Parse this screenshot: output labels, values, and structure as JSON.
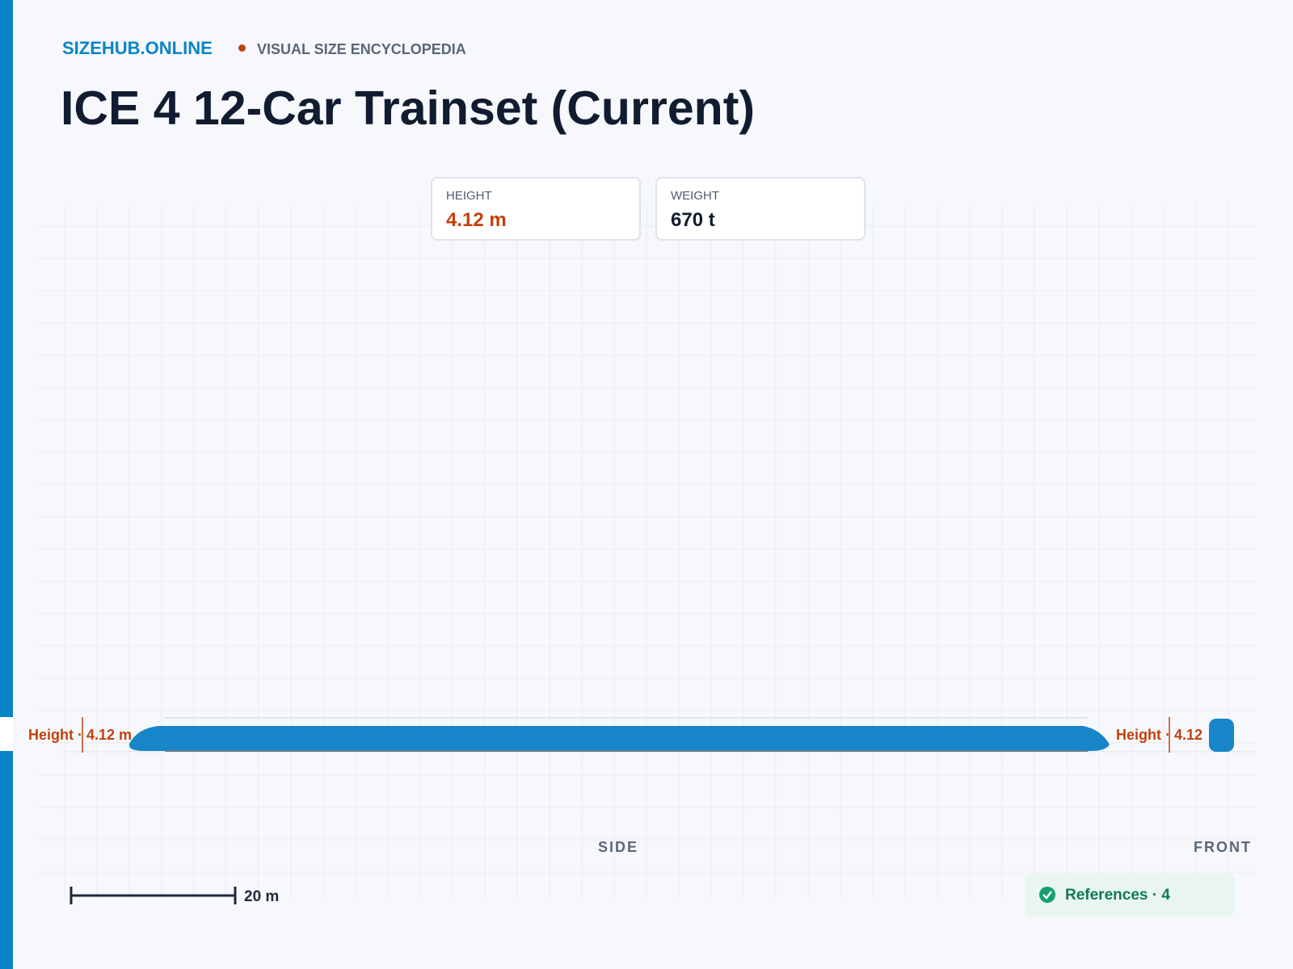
{
  "header": {
    "brand": "SIZEHUB.ONLINE",
    "tagline": "VISUAL SIZE ENCYCLOPEDIA"
  },
  "title": "ICE 4 12-Car Trainset (Current)",
  "stats": [
    {
      "label": "HEIGHT",
      "value": "4.12 m"
    },
    {
      "label": "WEIGHT",
      "value": "670 t"
    }
  ],
  "views": {
    "side_label": "SIDE",
    "front_label": "FRONT",
    "side_height": "Height · 4.12 m",
    "front_height": "Height · 4.12"
  },
  "scale_bar": "20 m",
  "references": "References · 4"
}
